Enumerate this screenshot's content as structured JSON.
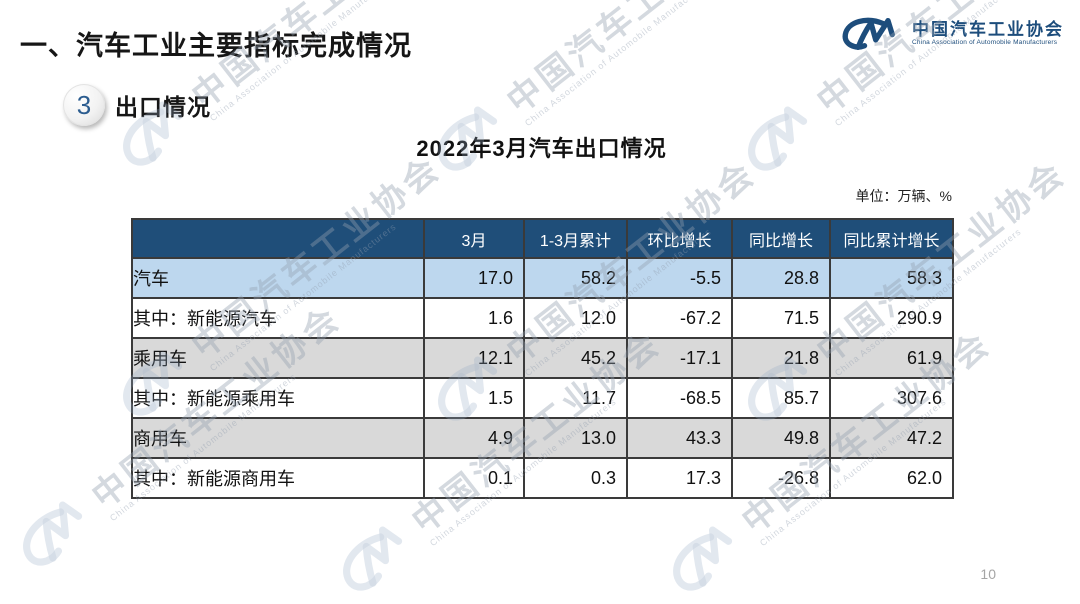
{
  "page": {
    "title": "一、汽车工业主要指标完成情况",
    "page_number": "10"
  },
  "logo": {
    "name_zh": "中国汽车工业协会",
    "name_en": "China Association of Automobile Manufacturers"
  },
  "section": {
    "badge": "3",
    "label": "出口情况"
  },
  "unit_label": "单位：万辆、%",
  "watermark": {
    "text_zh": "中国汽车工业协会",
    "text_en": "China Association of Automobile Manufacturers"
  },
  "colors": {
    "header_bg": "#1F4E79",
    "highlight_row_bg": "#BDD7EE",
    "alt_row_bg": "#D9D9D9",
    "logo_blue": "#1D4D7C"
  },
  "chart_data": {
    "type": "table",
    "title": "2022年3月汽车出口情况",
    "unit": "万辆、%",
    "columns": [
      "",
      "3月",
      "1-3月累计",
      "环比增长",
      "同比增长",
      "同比累计增长"
    ],
    "rows": [
      {
        "label": "汽车",
        "indent": 0,
        "bg": "blue",
        "values": [
          "17.0",
          "58.2",
          "-5.5",
          "28.8",
          "58.3"
        ]
      },
      {
        "label": "其中：新能源汽车",
        "indent": 1,
        "bg": "white",
        "values": [
          "1.6",
          "12.0",
          "-67.2",
          "71.5",
          "290.9"
        ]
      },
      {
        "label": "乘用车",
        "indent": 1,
        "bg": "gray",
        "values": [
          "12.1",
          "45.2",
          "-17.1",
          "21.8",
          "61.9"
        ]
      },
      {
        "label": "其中：新能源乘用车",
        "indent": 2,
        "bg": "white",
        "values": [
          "1.5",
          "11.7",
          "-68.5",
          "85.7",
          "307.6"
        ]
      },
      {
        "label": "商用车",
        "indent": 1,
        "bg": "gray",
        "values": [
          "4.9",
          "13.0",
          "43.3",
          "49.8",
          "47.2"
        ]
      },
      {
        "label": "其中：新能源商用车",
        "indent": 2,
        "bg": "white",
        "values": [
          "0.1",
          "0.3",
          "17.3",
          "-26.8",
          "62.0"
        ]
      }
    ]
  }
}
